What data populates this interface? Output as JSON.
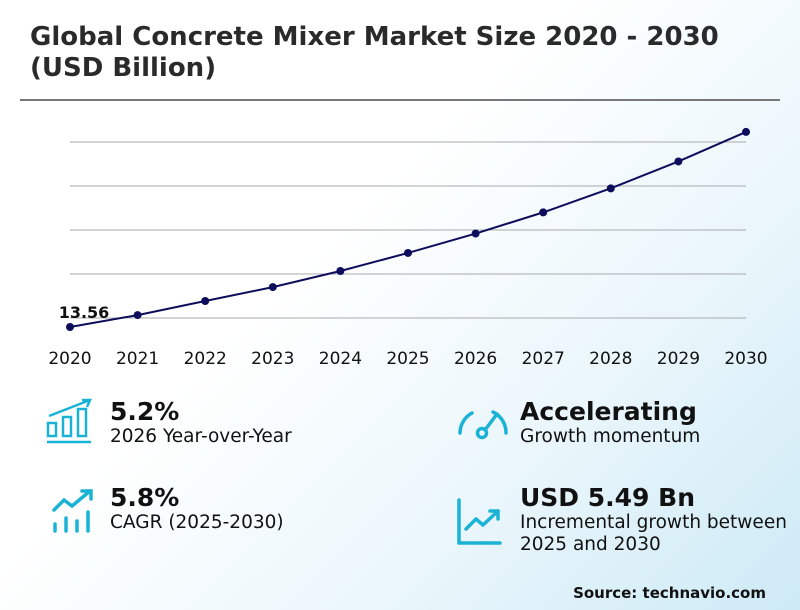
{
  "title": "Global Concrete Mixer Market Size 2020 - 2030 (USD Billion)",
  "chart_data": {
    "type": "line",
    "title": "Global Concrete Mixer Market Size 2020 - 2030 (USD Billion)",
    "categories": [
      "2020",
      "2021",
      "2022",
      "2023",
      "2024",
      "2025",
      "2026",
      "2027",
      "2028",
      "2029",
      "2030"
    ],
    "values": [
      13.56,
      14.1,
      14.74,
      15.37,
      16.1,
      16.92,
      17.8,
      18.76,
      19.85,
      21.07,
      22.41
    ],
    "data_labels": [
      {
        "category": "2020",
        "text": "13.56"
      }
    ],
    "grid": true,
    "line_color": "#0d0d5c",
    "xlabel": "",
    "ylabel": ""
  },
  "stats": [
    {
      "value": "5.2%",
      "label": "2026 Year-over-Year",
      "icon": "bar-chart-growth-icon"
    },
    {
      "value": "Accelerating",
      "label": "Growth momentum",
      "icon": "speedometer-icon"
    },
    {
      "value": "5.8%",
      "label": "CAGR (2025-2030)",
      "icon": "trend-up-bars-icon"
    },
    {
      "value": "USD 5.49 Bn",
      "label": "Incremental growth between 2025 and 2030",
      "icon": "line-chart-icon"
    }
  ],
  "accent_color": "#1ab3d6",
  "source": "Source: technavio.com"
}
